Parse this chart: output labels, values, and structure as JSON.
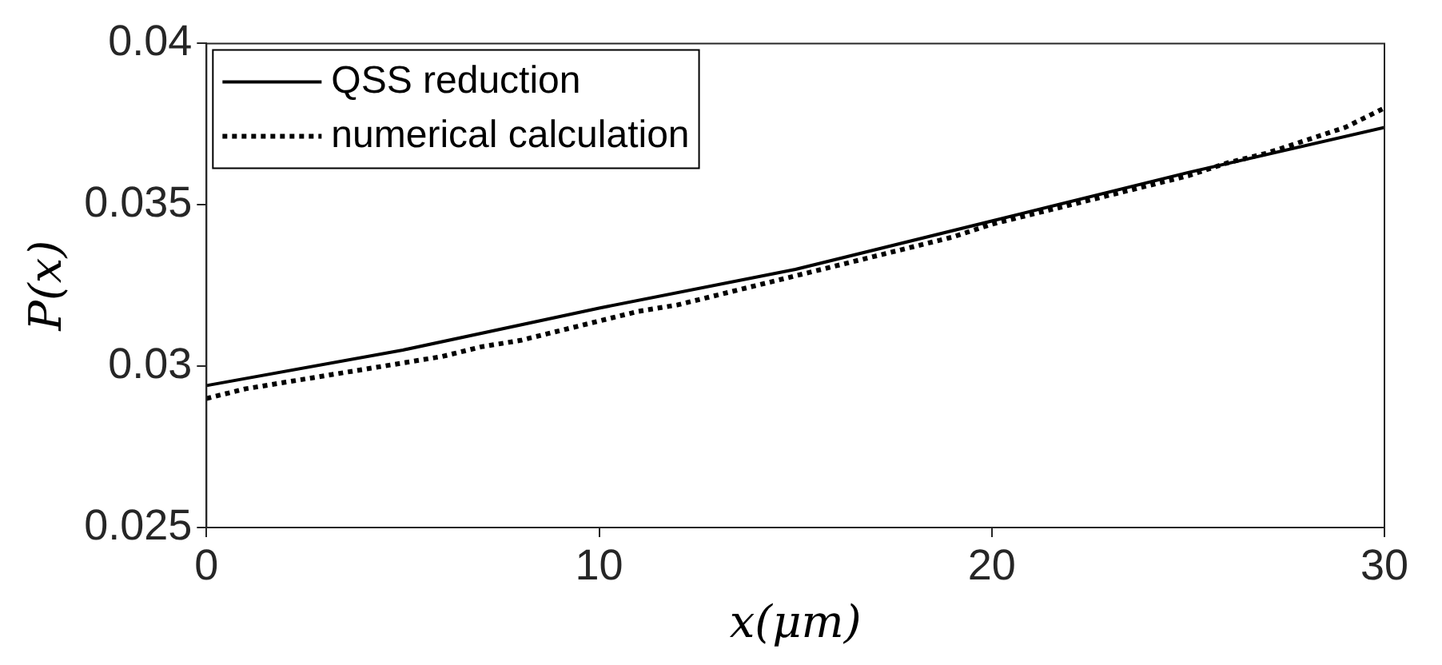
{
  "chart_data": {
    "type": "line",
    "xlabel": "x(μm)",
    "ylabel": "P(x)",
    "xlim": [
      0,
      30
    ],
    "xticks": [
      0,
      10,
      20,
      30
    ],
    "ylim": [
      0.025,
      0.04
    ],
    "yticks": [
      0.025,
      0.03,
      0.035,
      0.04
    ],
    "grid": false,
    "legend": "top left",
    "marker": "none",
    "series": [
      {
        "name": "QSS reduction",
        "color": "#000000",
        "line_style": "solid",
        "x": [
          0,
          5,
          10,
          15,
          20,
          25,
          30
        ],
        "values": [
          0.0294,
          0.0305,
          0.0318,
          0.033,
          0.0345,
          0.036,
          0.0374
        ]
      },
      {
        "name": "numerical calculation",
        "color": "#000000",
        "line_style": "dotted",
        "x": [
          0,
          1,
          2,
          3,
          4,
          5,
          6,
          7,
          8,
          9,
          10,
          11,
          12,
          13,
          14,
          15,
          16,
          17,
          18,
          19,
          20,
          21,
          22,
          23,
          24,
          25,
          26,
          27,
          28,
          29,
          30
        ],
        "values": [
          0.029,
          0.0293,
          0.0295,
          0.0297,
          0.0299,
          0.0301,
          0.0303,
          0.0306,
          0.0308,
          0.0311,
          0.0314,
          0.0317,
          0.0319,
          0.0322,
          0.0325,
          0.0328,
          0.0331,
          0.0334,
          0.0337,
          0.034,
          0.0344,
          0.0347,
          0.035,
          0.0353,
          0.0356,
          0.0359,
          0.0363,
          0.0366,
          0.037,
          0.0374,
          0.038
        ]
      }
    ]
  }
}
